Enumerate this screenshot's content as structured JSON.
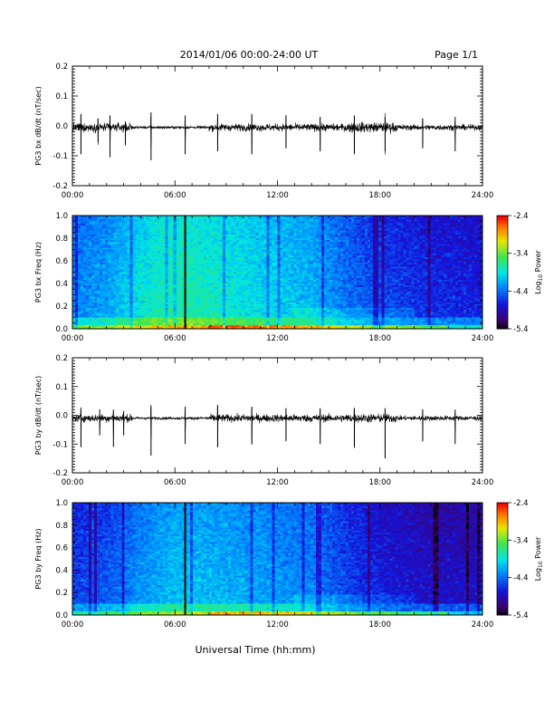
{
  "header": {
    "title": "2014/01/06  00:00-24:00 UT",
    "page": "Page 1/1"
  },
  "chart_data": [
    {
      "type": "line",
      "ylabel": "PG3 bx dB/dt (nT/sec)",
      "xlabel": "",
      "xlim": [
        0,
        24
      ],
      "ylim": [
        -0.2,
        0.2
      ],
      "x_ticks": [
        "00:00",
        "06:00",
        "12:00",
        "18:00",
        "24:00"
      ],
      "y_ticks": [
        "-0.2",
        "-0.1",
        "0.0",
        "0.1",
        "0.2"
      ],
      "baseline": -0.005,
      "spikes": [
        {
          "t": 0.5,
          "up": 0.045,
          "down": -0.09
        },
        {
          "t": 1.5,
          "up": 0.03,
          "down": -0.05
        },
        {
          "t": 2.2,
          "up": 0.04,
          "down": -0.1
        },
        {
          "t": 3.1,
          "up": 0.02,
          "down": -0.06
        },
        {
          "t": 4.6,
          "up": 0.05,
          "down": -0.11
        },
        {
          "t": 6.6,
          "up": 0.04,
          "down": -0.09
        },
        {
          "t": 8.5,
          "up": 0.045,
          "down": -0.08
        },
        {
          "t": 10.5,
          "up": 0.045,
          "down": -0.09
        },
        {
          "t": 12.5,
          "up": 0.04,
          "down": -0.07
        },
        {
          "t": 14.5,
          "up": 0.035,
          "down": -0.08
        },
        {
          "t": 16.5,
          "up": 0.04,
          "down": -0.09
        },
        {
          "t": 18.3,
          "up": 0.035,
          "down": -0.08
        },
        {
          "t": 20.5,
          "up": 0.03,
          "down": -0.07
        },
        {
          "t": 22.4,
          "up": 0.035,
          "down": -0.08
        }
      ],
      "noise_envelope": [
        {
          "from": 0,
          "to": 3.5,
          "amp": 0.015
        },
        {
          "from": 3.5,
          "to": 8,
          "amp": 0.005
        },
        {
          "from": 8,
          "to": 16,
          "amp": 0.013
        },
        {
          "from": 16,
          "to": 19,
          "amp": 0.018
        },
        {
          "from": 19,
          "to": 24,
          "amp": 0.01
        }
      ]
    },
    {
      "type": "heatmap",
      "ylabel": "PG3 bx Freq (Hz)",
      "xlim": [
        0,
        24
      ],
      "ylim": [
        0,
        1.0
      ],
      "x_ticks": [
        "00:00",
        "06:00",
        "12:00",
        "18:00",
        "24:00"
      ],
      "y_ticks": [
        "0.0",
        "0.2",
        "0.4",
        "0.6",
        "0.8",
        "1.0"
      ],
      "colorbar": {
        "label_main": "Log",
        "label_sub": "10",
        "label_end": " Power",
        "ticks": [
          "-2.4",
          "-3.4",
          "-4.4",
          "-5.4"
        ],
        "range": [
          -5.4,
          -2.4
        ]
      },
      "vertical_line_t": 6.6,
      "profile": [
        {
          "t": 0,
          "level": 0.38
        },
        {
          "t": 2,
          "level": 0.42
        },
        {
          "t": 4,
          "level": 0.52
        },
        {
          "t": 6,
          "level": 0.58
        },
        {
          "t": 8,
          "level": 0.55
        },
        {
          "t": 11,
          "level": 0.5
        },
        {
          "t": 14,
          "level": 0.45
        },
        {
          "t": 16,
          "level": 0.36
        },
        {
          "t": 18,
          "level": 0.3
        },
        {
          "t": 21,
          "level": 0.26
        },
        {
          "t": 24,
          "level": 0.24
        }
      ]
    },
    {
      "type": "line",
      "ylabel": "PG3 by dB/dt (nT/sec)",
      "xlabel": "",
      "xlim": [
        0,
        24
      ],
      "ylim": [
        -0.2,
        0.2
      ],
      "x_ticks": [
        "00:00",
        "06:00",
        "12:00",
        "18:00",
        "24:00"
      ],
      "y_ticks": [
        "-0.2",
        "-0.1",
        "0.0",
        "0.1",
        "0.2"
      ],
      "baseline": -0.01,
      "spikes": [
        {
          "t": 0.5,
          "up": 0.035,
          "down": -0.1
        },
        {
          "t": 1.6,
          "up": 0.03,
          "down": -0.06
        },
        {
          "t": 2.4,
          "up": 0.03,
          "down": -0.1
        },
        {
          "t": 3.0,
          "up": 0.025,
          "down": -0.06
        },
        {
          "t": 4.6,
          "up": 0.045,
          "down": -0.13
        },
        {
          "t": 6.6,
          "up": 0.04,
          "down": -0.09
        },
        {
          "t": 8.5,
          "up": 0.045,
          "down": -0.1
        },
        {
          "t": 10.5,
          "up": 0.04,
          "down": -0.09
        },
        {
          "t": 12.5,
          "up": 0.035,
          "down": -0.08
        },
        {
          "t": 14.5,
          "up": 0.035,
          "down": -0.09
        },
        {
          "t": 16.5,
          "up": 0.035,
          "down": -0.1
        },
        {
          "t": 18.3,
          "up": 0.035,
          "down": -0.14
        },
        {
          "t": 20.5,
          "up": 0.03,
          "down": -0.08
        },
        {
          "t": 22.4,
          "up": 0.03,
          "down": -0.09
        }
      ],
      "noise_envelope": [
        {
          "from": 0,
          "to": 3.5,
          "amp": 0.014
        },
        {
          "from": 3.5,
          "to": 8,
          "amp": 0.005
        },
        {
          "from": 8,
          "to": 16,
          "amp": 0.014
        },
        {
          "from": 16,
          "to": 19,
          "amp": 0.016
        },
        {
          "from": 19,
          "to": 24,
          "amp": 0.009
        }
      ]
    },
    {
      "type": "heatmap",
      "ylabel": "PG3 by Freq (Hz)",
      "xlim": [
        0,
        24
      ],
      "ylim": [
        0,
        1.0
      ],
      "x_ticks": [
        "00:00",
        "06:00",
        "12:00",
        "18:00",
        "24:00"
      ],
      "y_ticks": [
        "0.0",
        "0.2",
        "0.4",
        "0.6",
        "0.8",
        "1.0"
      ],
      "colorbar": {
        "label_main": "Log",
        "label_sub": "10",
        "label_end": " Power",
        "ticks": [
          "-2.4",
          "-3.4",
          "-4.4",
          "-5.4"
        ],
        "range": [
          -5.4,
          -2.4
        ]
      },
      "vertical_line_t": 6.6,
      "profile": [
        {
          "t": 0,
          "level": 0.28
        },
        {
          "t": 2,
          "level": 0.32
        },
        {
          "t": 4,
          "level": 0.4
        },
        {
          "t": 6,
          "level": 0.46
        },
        {
          "t": 8,
          "level": 0.45
        },
        {
          "t": 11,
          "level": 0.42
        },
        {
          "t": 14,
          "level": 0.38
        },
        {
          "t": 16,
          "level": 0.3
        },
        {
          "t": 18,
          "level": 0.24
        },
        {
          "t": 21,
          "level": 0.2
        },
        {
          "t": 24,
          "level": 0.2
        }
      ]
    }
  ],
  "footer": {
    "xlabel": "Universal Time (hh:mm)"
  }
}
